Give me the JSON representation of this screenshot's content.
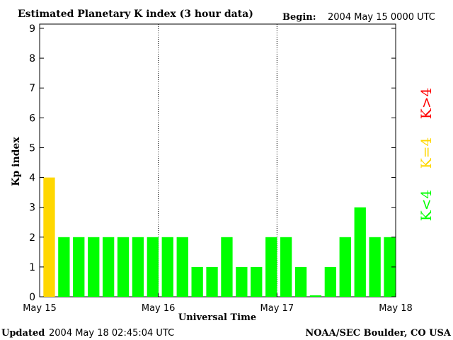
{
  "header": {
    "title": "Estimated Planetary K index (3 hour data)",
    "begin_label": "Begin:",
    "begin_value": "2004 May 15 0000 UTC"
  },
  "footer": {
    "updated_label": "Updated",
    "updated_value": "2004 May 18 02:45:04 UTC",
    "source": "NOAA/SEC Boulder, CO USA"
  },
  "legend": {
    "items": [
      {
        "label": "K<4",
        "color": "#00ff00"
      },
      {
        "label": "K=4",
        "color": "#ffd700"
      },
      {
        "label": "K>4",
        "color": "#ff0000"
      }
    ]
  },
  "colors": {
    "low": "#00ff00",
    "equal": "#ffd700",
    "high": "#ff0000",
    "axis": "#000000"
  },
  "chart_data": {
    "type": "bar",
    "title": "Estimated Planetary K index (3 hour data)",
    "xlabel": "Universal Time",
    "ylabel": "Kp index",
    "ylim": [
      0,
      9
    ],
    "yticks": [
      0,
      1,
      2,
      3,
      4,
      5,
      6,
      7,
      8,
      9
    ],
    "x_tick_labels": [
      "May 15",
      "May 16",
      "May 17",
      "May 18"
    ],
    "day_separators": [
      "May 16",
      "May 17"
    ],
    "bars_per_day": 8,
    "grid": false,
    "legend_position": "right",
    "values": [
      4,
      2,
      2,
      2,
      2,
      2,
      2,
      2,
      2,
      2,
      1,
      1,
      2,
      1,
      1,
      2,
      2,
      1,
      0.05,
      1,
      2,
      3,
      2,
      2
    ]
  }
}
